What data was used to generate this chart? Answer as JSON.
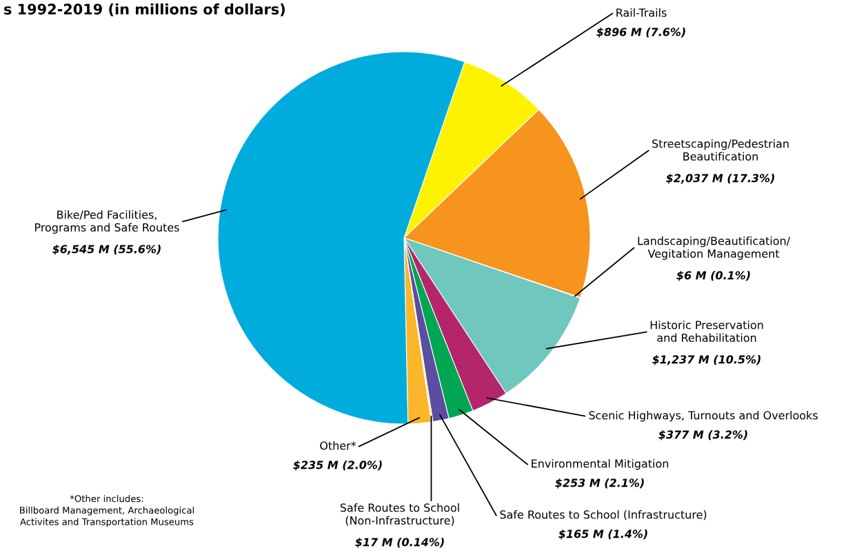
{
  "chart_data": {
    "type": "pie",
    "title": "s 1992-2019 (in millions of dollars)",
    "categories": [
      "Rail-Trails",
      "Streetscaping/Pedestrian\nBeautification",
      "Landscaping/Beautification/\nVegitation Management",
      "Historic Preservation\nand Rehabilitation",
      "Scenic Highways, Turnouts and Overlooks",
      "Environmental Mitigation",
      "Safe Routes to School (Infrastructure)",
      "Safe Routes to School\n(Non-Infrastructure)",
      "Other*",
      "Bike/Ped Facilities,\nPrograms and Safe Routes"
    ],
    "values": [
      896,
      2037,
      6,
      1237,
      377,
      253,
      165,
      17,
      235,
      6545
    ],
    "value_labels": [
      "$896 M (7.6%)",
      "$2,037 M (17.3%)",
      "$6 M (0.1%)",
      "$1,237 M (10.5%)",
      "$377 M (3.2%)",
      "$253 M (2.1%)",
      "$165 M (1.4%)",
      "$17 M (0.14%)",
      "$235 M (2.0%)",
      "$6,545 M (55.6%)"
    ],
    "colors": [
      "#fff200",
      "#f7941d",
      "#ed1c24",
      "#6fc7bd",
      "#b5256b",
      "#00a651",
      "#5b4ea1",
      "#f3e58a",
      "#fbb62b",
      "#00acdc"
    ],
    "annotations": [
      "*Other includes:\nBillboard Management, Archaeological\nActivites and Transportation Museums"
    ],
    "legend": false
  }
}
